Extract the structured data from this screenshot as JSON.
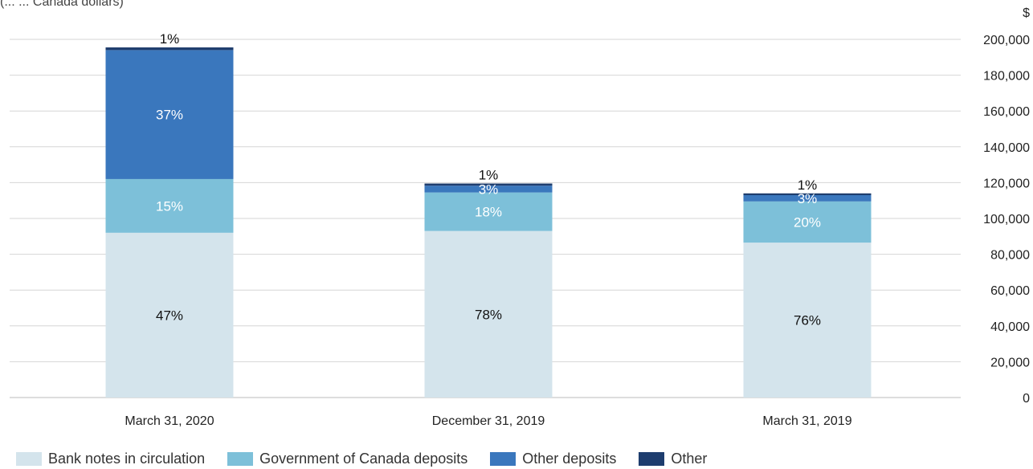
{
  "chart_data": {
    "type": "bar",
    "stacked": true,
    "unit_label": "$",
    "subtitle_partial": "(... ... Canada dollars)",
    "categories": [
      "March 31, 2020",
      "December 31, 2019",
      "March 31, 2019"
    ],
    "ylim": [
      0,
      200000
    ],
    "yticks": [
      "0",
      "20,000",
      "40,000",
      "60,000",
      "80,000",
      "100,000",
      "120,000",
      "140,000",
      "160,000",
      "180,000",
      "200,000"
    ],
    "grid": true,
    "legend_position": "bottom-left",
    "series": [
      {
        "name": "Bank notes in circulation",
        "color": "#d4e4ec",
        "values": [
          92000,
          93000,
          86500
        ],
        "labels": [
          "47%",
          "78%",
          "76%"
        ],
        "label_color": "#111111"
      },
      {
        "name": "Government of Canada deposits",
        "color": "#7dc0d9",
        "values": [
          30000,
          21500,
          23000
        ],
        "labels": [
          "15%",
          "18%",
          "20%"
        ],
        "label_color": "#ffffff"
      },
      {
        "name": "Other deposits",
        "color": "#3a77bd",
        "values": [
          72000,
          3800,
          3500
        ],
        "labels": [
          "37%",
          "3%",
          "3%"
        ],
        "label_color": "#ffffff"
      },
      {
        "name": "Other",
        "color": "#1e3d6e",
        "values": [
          1500,
          1200,
          1000
        ],
        "labels": [
          "1%",
          "1%",
          "1%"
        ],
        "label_color": "#111111"
      }
    ]
  }
}
